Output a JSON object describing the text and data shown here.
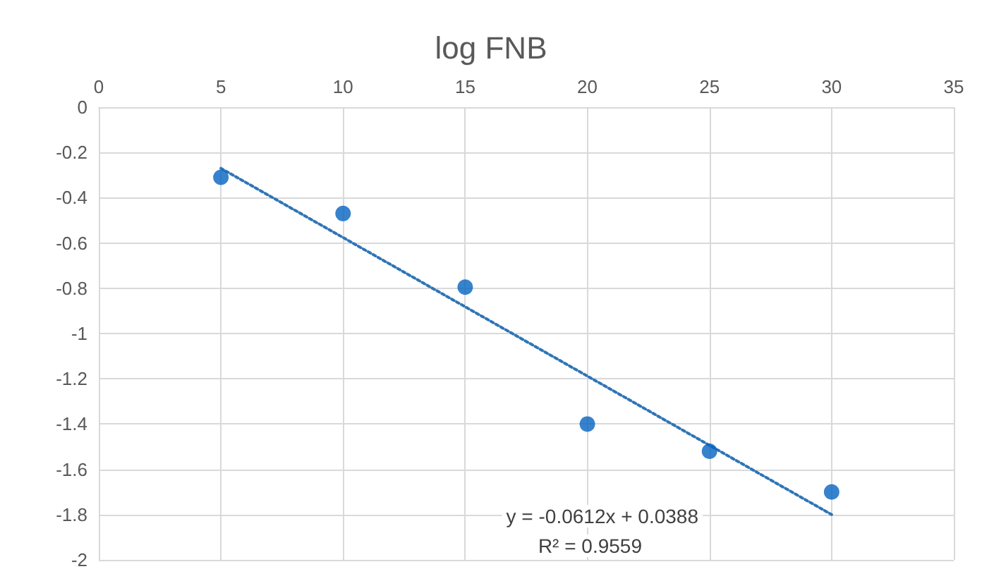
{
  "chart_data": {
    "type": "scatter",
    "title": "log FNB",
    "grid": true,
    "xlim": [
      0,
      35
    ],
    "xticks": [
      0,
      5,
      10,
      15,
      20,
      25,
      30,
      35
    ],
    "ylim": [
      -2,
      0
    ],
    "yticks": [
      0,
      -0.2,
      -0.4,
      -0.6,
      -0.8,
      -1,
      -1.2,
      -1.4,
      -1.6,
      -1.8,
      -2
    ],
    "series": [
      {
        "marker": "circle",
        "color": "#0563c1",
        "x": [
          5,
          10,
          15,
          20,
          25,
          30
        ],
        "values": [
          -0.31,
          -0.47,
          -0.795,
          -1.4,
          -1.52,
          -1.7
        ]
      },
      {
        "type": "line",
        "line_style": "dotted",
        "color": "#2e75b6",
        "x": [
          5,
          30
        ],
        "values": [
          -0.27,
          -1.8
        ]
      }
    ],
    "annotations": [
      "y = -0.0612x + 0.0388",
      "R² = 0.9559"
    ]
  }
}
